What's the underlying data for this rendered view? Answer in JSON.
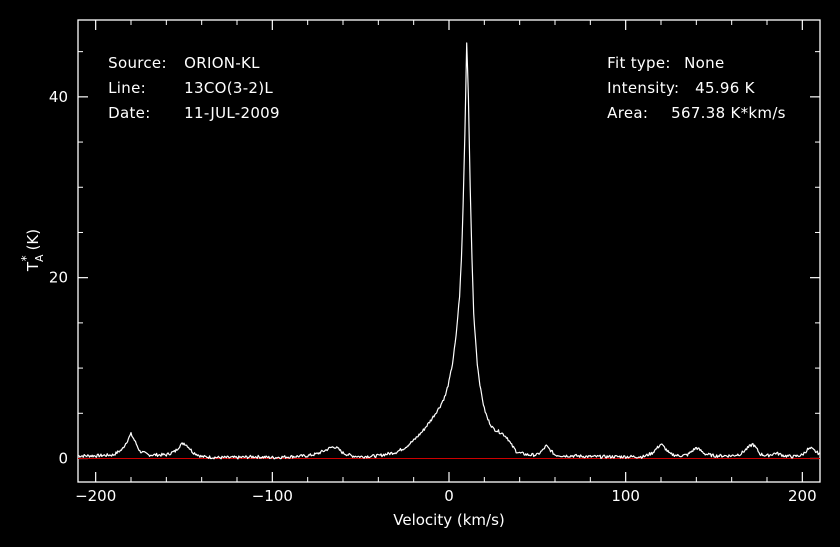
{
  "info": {
    "source_label": "Source:",
    "source_value": "ORION-KL",
    "line_label": "Line:",
    "line_value": "13CO(3-2)L",
    "date_label": "Date:",
    "date_value": "11-JUL-2009",
    "fit_label": "Fit type:",
    "fit_value": "None",
    "intensity_label": "Intensity:",
    "intensity_value": "45.96 K",
    "area_label": "Area:",
    "area_value": "567.38 K*km/s"
  },
  "chart_data": {
    "type": "line",
    "xlabel": "Velocity (km/s)",
    "ylabel_main": "T",
    "ylabel_sup": "*",
    "ylabel_sub": "A",
    "ylabel_unit": "(K)",
    "xlim": [
      -210,
      210
    ],
    "ylim": [
      -2.6,
      48.5
    ],
    "xticks": [
      -200,
      -100,
      0,
      100,
      200
    ],
    "xtick_labels": [
      "−200",
      "−100",
      "0",
      "100",
      "200"
    ],
    "yticks": [
      0,
      20,
      40
    ],
    "ytick_labels": [
      "0",
      "20",
      "40"
    ],
    "grid": false,
    "colors": {
      "background": "#000000",
      "axes": "#ffffff",
      "spectrum": "#ffffff",
      "baseline": "#cc0000"
    },
    "baseline_y": 0,
    "series": [
      {
        "x": [
          -210,
          -200,
          -190,
          -185,
          -182,
          -180,
          -178,
          -175,
          -170,
          -160,
          -155,
          -152,
          -150,
          -148,
          -145,
          -140,
          -130,
          -120,
          -110,
          -100,
          -90,
          -80,
          -75,
          -70,
          -67,
          -65,
          -63,
          -60,
          -55,
          -50,
          -40,
          -30,
          -25,
          -20,
          -15,
          -10,
          -5,
          -2,
          0,
          2,
          4,
          6,
          7,
          8,
          9,
          10,
          11,
          12,
          13,
          14,
          16,
          18,
          20,
          22,
          25,
          28,
          30,
          33,
          35,
          38,
          40,
          45,
          50,
          53,
          55,
          57,
          60,
          65,
          70,
          80,
          90,
          100,
          110,
          115,
          118,
          120,
          122,
          125,
          130,
          135,
          140,
          143,
          145,
          150,
          155,
          160,
          165,
          170,
          172,
          174,
          176,
          180,
          185,
          190,
          195,
          200,
          203,
          205,
          208,
          210
        ],
        "y": [
          0.3,
          0.3,
          0.4,
          1.0,
          2.0,
          2.7,
          2.0,
          0.8,
          0.4,
          0.4,
          0.8,
          1.5,
          1.7,
          1.4,
          0.7,
          0.2,
          0.1,
          0.1,
          0.2,
          0.1,
          0.2,
          0.3,
          0.5,
          0.9,
          1.2,
          1.3,
          1.1,
          0.6,
          0.3,
          0.2,
          0.3,
          0.7,
          1.2,
          2.0,
          3.0,
          4.3,
          5.8,
          7.0,
          8.5,
          10.5,
          13.5,
          18.0,
          22.0,
          28.0,
          36.0,
          45.96,
          40.0,
          30.0,
          22.0,
          16.0,
          10.5,
          7.5,
          5.5,
          4.3,
          3.3,
          3.0,
          2.8,
          2.3,
          1.6,
          0.8,
          0.6,
          0.4,
          0.4,
          0.9,
          1.4,
          1.0,
          0.4,
          0.3,
          0.3,
          0.2,
          0.2,
          0.2,
          0.2,
          0.6,
          1.2,
          1.6,
          1.2,
          0.5,
          0.3,
          0.4,
          1.2,
          0.8,
          0.5,
          0.3,
          0.3,
          0.3,
          0.5,
          1.3,
          1.6,
          1.1,
          0.5,
          0.3,
          0.6,
          0.3,
          0.2,
          0.4,
          1.0,
          1.1,
          0.7,
          0.5
        ]
      }
    ]
  }
}
